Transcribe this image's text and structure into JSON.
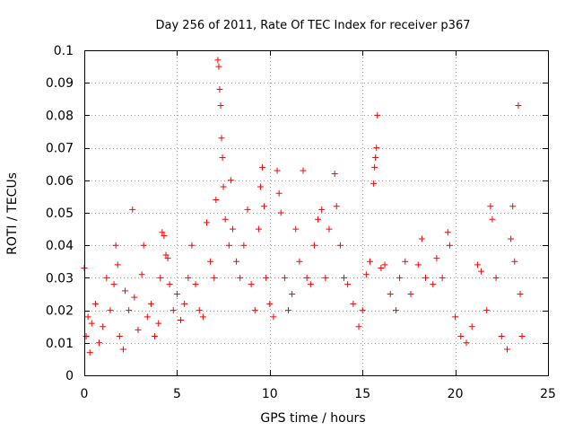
{
  "chart_data": {
    "type": "scatter",
    "title": "Day 256 of 2011, Rate Of TEC Index for receiver p367",
    "xlabel": "GPS time / hours",
    "ylabel": "ROTI / TECUs",
    "xlim": [
      0,
      25
    ],
    "ylim": [
      0,
      0.1
    ],
    "x_ticks": [
      "0",
      "5",
      "10",
      "15",
      "20",
      "25"
    ],
    "y_ticks": [
      "0",
      "0.01",
      "0.02",
      "0.03",
      "0.04",
      "0.05",
      "0.06",
      "0.07",
      "0.08",
      "0.09",
      "0.1"
    ],
    "x_tick_values": [
      0,
      5,
      10,
      15,
      20,
      25
    ],
    "y_tick_values": [
      0,
      0.01,
      0.02,
      0.03,
      0.04,
      0.05,
      0.06,
      0.07,
      0.08,
      0.09,
      0.1
    ],
    "grid": true,
    "marker": "+",
    "color": "#ff0000",
    "series": [
      {
        "points": [
          [
            0.0,
            0.033
          ],
          [
            0.1,
            0.012
          ],
          [
            0.2,
            0.018
          ],
          [
            0.3,
            0.007
          ],
          [
            0.4,
            0.016
          ],
          [
            0.6,
            0.022
          ],
          [
            0.8,
            0.01
          ],
          [
            1.0,
            0.015
          ],
          [
            1.2,
            0.03
          ],
          [
            1.4,
            0.02
          ],
          [
            1.6,
            0.028
          ],
          [
            1.7,
            0.04
          ],
          [
            1.8,
            0.034
          ],
          [
            1.9,
            0.012
          ],
          [
            2.1,
            0.008
          ],
          [
            2.2,
            0.026
          ],
          [
            2.4,
            0.02
          ],
          [
            2.6,
            0.051
          ],
          [
            2.7,
            0.024
          ],
          [
            2.9,
            0.014
          ],
          [
            3.1,
            0.031
          ],
          [
            3.2,
            0.04
          ],
          [
            3.4,
            0.018
          ],
          [
            3.6,
            0.022
          ],
          [
            3.8,
            0.012
          ],
          [
            4.0,
            0.016
          ],
          [
            4.1,
            0.03
          ],
          [
            4.2,
            0.044
          ],
          [
            4.3,
            0.043
          ],
          [
            4.4,
            0.037
          ],
          [
            4.5,
            0.036
          ],
          [
            4.6,
            0.028
          ],
          [
            4.8,
            0.02
          ],
          [
            5.0,
            0.025
          ],
          [
            5.2,
            0.017
          ],
          [
            5.4,
            0.022
          ],
          [
            5.6,
            0.03
          ],
          [
            5.8,
            0.04
          ],
          [
            6.0,
            0.028
          ],
          [
            6.2,
            0.02
          ],
          [
            6.4,
            0.018
          ],
          [
            6.6,
            0.047
          ],
          [
            6.8,
            0.035
          ],
          [
            7.0,
            0.03
          ],
          [
            7.1,
            0.054
          ],
          [
            7.2,
            0.097
          ],
          [
            7.25,
            0.095
          ],
          [
            7.3,
            0.088
          ],
          [
            7.35,
            0.083
          ],
          [
            7.4,
            0.073
          ],
          [
            7.45,
            0.067
          ],
          [
            7.5,
            0.058
          ],
          [
            7.6,
            0.048
          ],
          [
            7.8,
            0.04
          ],
          [
            7.9,
            0.06
          ],
          [
            8.0,
            0.045
          ],
          [
            8.2,
            0.035
          ],
          [
            8.4,
            0.03
          ],
          [
            8.6,
            0.04
          ],
          [
            8.8,
            0.051
          ],
          [
            9.0,
            0.028
          ],
          [
            9.2,
            0.02
          ],
          [
            9.4,
            0.045
          ],
          [
            9.5,
            0.058
          ],
          [
            9.6,
            0.064
          ],
          [
            9.7,
            0.052
          ],
          [
            9.8,
            0.03
          ],
          [
            10.0,
            0.022
          ],
          [
            10.2,
            0.018
          ],
          [
            10.4,
            0.063
          ],
          [
            10.5,
            0.056
          ],
          [
            10.6,
            0.05
          ],
          [
            10.8,
            0.03
          ],
          [
            11.0,
            0.02
          ],
          [
            11.2,
            0.025
          ],
          [
            11.4,
            0.045
          ],
          [
            11.6,
            0.035
          ],
          [
            11.8,
            0.063
          ],
          [
            12.0,
            0.03
          ],
          [
            12.2,
            0.028
          ],
          [
            12.4,
            0.04
          ],
          [
            12.6,
            0.048
          ],
          [
            12.8,
            0.051
          ],
          [
            13.0,
            0.03
          ],
          [
            13.2,
            0.045
          ],
          [
            13.5,
            0.062
          ],
          [
            13.6,
            0.052
          ],
          [
            13.8,
            0.04
          ],
          [
            14.0,
            0.03
          ],
          [
            14.2,
            0.028
          ],
          [
            14.5,
            0.022
          ],
          [
            14.8,
            0.015
          ],
          [
            15.0,
            0.02
          ],
          [
            15.2,
            0.031
          ],
          [
            15.4,
            0.035
          ],
          [
            15.6,
            0.059
          ],
          [
            15.65,
            0.064
          ],
          [
            15.7,
            0.067
          ],
          [
            15.75,
            0.07
          ],
          [
            15.8,
            0.08
          ],
          [
            16.0,
            0.033
          ],
          [
            16.2,
            0.034
          ],
          [
            16.5,
            0.025
          ],
          [
            16.8,
            0.02
          ],
          [
            17.0,
            0.03
          ],
          [
            17.3,
            0.035
          ],
          [
            17.6,
            0.025
          ],
          [
            18.0,
            0.034
          ],
          [
            18.2,
            0.042
          ],
          [
            18.4,
            0.03
          ],
          [
            18.8,
            0.028
          ],
          [
            19.0,
            0.036
          ],
          [
            19.3,
            0.03
          ],
          [
            19.6,
            0.044
          ],
          [
            19.7,
            0.04
          ],
          [
            20.0,
            0.018
          ],
          [
            20.3,
            0.012
          ],
          [
            20.6,
            0.01
          ],
          [
            20.9,
            0.015
          ],
          [
            21.2,
            0.034
          ],
          [
            21.4,
            0.032
          ],
          [
            21.7,
            0.02
          ],
          [
            21.9,
            0.052
          ],
          [
            22.0,
            0.048
          ],
          [
            22.2,
            0.03
          ],
          [
            22.5,
            0.012
          ],
          [
            22.8,
            0.008
          ],
          [
            23.0,
            0.042
          ],
          [
            23.1,
            0.052
          ],
          [
            23.2,
            0.035
          ],
          [
            23.4,
            0.083
          ],
          [
            23.5,
            0.025
          ],
          [
            23.6,
            0.012
          ]
        ]
      }
    ]
  }
}
